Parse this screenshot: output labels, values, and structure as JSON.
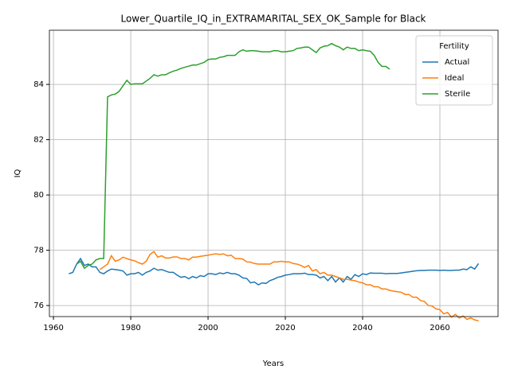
{
  "chart_data": {
    "type": "line",
    "title": "Lower_Quartile_IQ_in_EXTRAMARITAL_SEX_OK_Sample for Black",
    "xlabel": "Years",
    "ylabel": "IQ",
    "x": [
      1964,
      1965,
      1966,
      1967,
      1968,
      1969,
      1970,
      1971,
      1972,
      1973,
      1974,
      1975,
      1976,
      1977,
      1978,
      1979,
      1980,
      1981,
      1982,
      1983,
      1984,
      1985,
      1986,
      1987,
      1988,
      1989,
      1990,
      1991,
      1992,
      1993,
      1994,
      1995,
      1996,
      1997,
      1998,
      1999,
      2000,
      2001,
      2002,
      2003,
      2004,
      2005,
      2006,
      2007,
      2008,
      2009,
      2010,
      2011,
      2012,
      2013,
      2014,
      2015,
      2016,
      2017,
      2018,
      2019,
      2020,
      2021,
      2022,
      2023,
      2024,
      2025,
      2026,
      2027,
      2028,
      2029,
      2030,
      2031,
      2032,
      2033,
      2034,
      2035,
      2036,
      2037,
      2038,
      2039,
      2040,
      2041,
      2042,
      2043,
      2044,
      2045,
      2046,
      2047,
      2048,
      2049,
      2050,
      2051,
      2052,
      2053,
      2054,
      2055,
      2056,
      2057,
      2058,
      2059,
      2060,
      2061,
      2062,
      2063,
      2064,
      2065,
      2066,
      2067,
      2068,
      2069,
      2070
    ],
    "series": [
      {
        "name": "Actual",
        "color": "#1f77b4",
        "values": [
          77.15,
          77.2,
          77.5,
          77.7,
          77.45,
          77.5,
          77.4,
          77.4,
          77.2,
          77.15,
          77.25,
          77.32,
          77.3,
          77.28,
          77.25,
          77.1,
          77.15,
          77.15,
          77.2,
          77.1,
          77.2,
          77.25,
          77.35,
          77.28,
          77.3,
          77.25,
          77.2,
          77.2,
          77.1,
          77.02,
          77.05,
          76.97,
          77.05,
          77.0,
          77.08,
          77.05,
          77.15,
          77.15,
          77.12,
          77.18,
          77.15,
          77.2,
          77.15,
          77.15,
          77.1,
          77.0,
          76.98,
          76.82,
          76.85,
          76.75,
          76.82,
          76.8,
          76.9,
          76.95,
          77.02,
          77.05,
          77.1,
          77.12,
          77.15,
          77.15,
          77.15,
          77.17,
          77.12,
          77.12,
          77.1,
          77.0,
          77.05,
          76.9,
          77.05,
          76.85,
          77.0,
          76.85,
          77.05,
          76.95,
          77.12,
          77.05,
          77.15,
          77.12,
          77.18,
          77.17,
          77.17,
          77.17,
          77.15,
          77.16,
          77.16,
          77.16,
          77.18,
          77.2,
          77.22,
          77.24,
          77.26,
          77.27,
          77.27,
          77.28,
          77.28,
          77.28,
          77.27,
          77.28,
          77.27,
          77.27,
          77.28,
          77.28,
          77.32,
          77.3,
          77.4,
          77.32,
          77.52
        ]
      },
      {
        "name": "Ideal",
        "color": "#ff7f0e",
        "values": [
          null,
          null,
          null,
          null,
          null,
          null,
          null,
          null,
          77.3,
          77.4,
          77.5,
          77.8,
          77.6,
          77.65,
          77.75,
          77.7,
          77.65,
          77.62,
          77.55,
          77.5,
          77.6,
          77.85,
          77.95,
          77.75,
          77.8,
          77.72,
          77.72,
          77.76,
          77.76,
          77.7,
          77.7,
          77.65,
          77.75,
          77.75,
          77.78,
          77.8,
          77.82,
          77.85,
          77.87,
          77.85,
          77.87,
          77.8,
          77.82,
          77.7,
          77.7,
          77.68,
          77.58,
          77.57,
          77.52,
          77.5,
          77.5,
          77.5,
          77.5,
          77.58,
          77.58,
          77.6,
          77.58,
          77.58,
          77.52,
          77.5,
          77.45,
          77.38,
          77.45,
          77.25,
          77.3,
          77.15,
          77.2,
          77.1,
          77.1,
          77.05,
          77.0,
          76.95,
          76.95,
          76.92,
          76.9,
          76.85,
          76.82,
          76.75,
          76.75,
          76.68,
          76.68,
          76.6,
          76.6,
          76.55,
          76.52,
          76.5,
          76.48,
          76.4,
          76.4,
          76.3,
          76.3,
          76.18,
          76.15,
          76.0,
          75.98,
          75.88,
          75.85,
          75.7,
          75.75,
          75.58,
          75.68,
          75.55,
          75.62,
          75.5,
          75.55,
          75.48,
          75.45
        ]
      },
      {
        "name": "Sterile",
        "color": "#2ca02c",
        "values": [
          null,
          null,
          77.5,
          77.6,
          77.35,
          77.45,
          77.5,
          77.65,
          77.7,
          77.7,
          83.55,
          83.62,
          83.65,
          83.75,
          83.95,
          84.15,
          84.0,
          84.02,
          84.02,
          84.02,
          84.12,
          84.22,
          84.35,
          84.3,
          84.35,
          84.35,
          84.42,
          84.48,
          84.52,
          84.58,
          84.62,
          84.66,
          84.7,
          84.7,
          84.75,
          84.8,
          84.9,
          84.92,
          84.92,
          84.98,
          85.0,
          85.05,
          85.05,
          85.05,
          85.18,
          85.25,
          85.2,
          85.22,
          85.22,
          85.2,
          85.18,
          85.18,
          85.18,
          85.22,
          85.22,
          85.18,
          85.18,
          85.2,
          85.22,
          85.3,
          85.32,
          85.35,
          85.35,
          85.25,
          85.15,
          85.32,
          85.38,
          85.4,
          85.48,
          85.4,
          85.35,
          85.25,
          85.35,
          85.3,
          85.3,
          85.22,
          85.25,
          85.22,
          85.2,
          85.05,
          84.8,
          84.65,
          84.65,
          84.55,
          null,
          null,
          null,
          null,
          null,
          null,
          null,
          null,
          null,
          null,
          null,
          null,
          null,
          null,
          null,
          null,
          null,
          null,
          null,
          null,
          null,
          null,
          null
        ]
      }
    ],
    "xlim": [
      1958.95,
      2075.05
    ],
    "ylim": [
      75.6,
      85.96
    ],
    "xticks": [
      1960,
      1980,
      2000,
      2020,
      2040,
      2060
    ],
    "yticks": [
      76,
      78,
      80,
      82,
      84
    ],
    "grid": true,
    "legend_title": "Fertility",
    "legend_loc": "upper right"
  }
}
